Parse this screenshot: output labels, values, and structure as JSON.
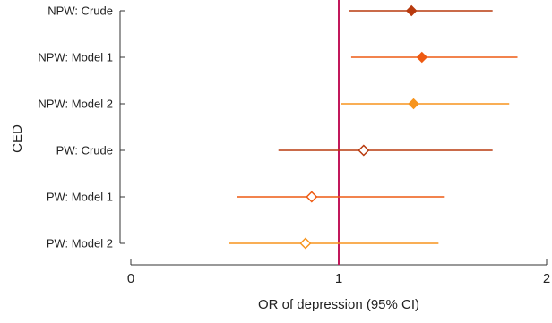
{
  "chart_data": {
    "type": "forest",
    "title": "",
    "xlabel": "OR of depression (95% CI)",
    "ylabel": "CED",
    "xlim": [
      0,
      2
    ],
    "x_ticks": [
      "0",
      "1",
      "2"
    ],
    "reference_line": {
      "x": 1,
      "color": "#c2185b"
    },
    "grid": false,
    "rows": [
      {
        "label": "NPW: Crude",
        "or": 1.35,
        "ci_low": 1.05,
        "ci_high": 1.74,
        "marker": "filled",
        "color": "#b83a0e"
      },
      {
        "label": "NPW: Model 1",
        "or": 1.4,
        "ci_low": 1.06,
        "ci_high": 1.86,
        "marker": "filled",
        "color": "#ee5a12"
      },
      {
        "label": "NPW: Model 2",
        "or": 1.36,
        "ci_low": 1.01,
        "ci_high": 1.82,
        "marker": "filled",
        "color": "#f7941d"
      },
      {
        "label": "PW: Crude",
        "or": 1.12,
        "ci_low": 0.71,
        "ci_high": 1.74,
        "marker": "open",
        "color": "#b83a0e"
      },
      {
        "label": "PW: Model 1",
        "or": 0.87,
        "ci_low": 0.51,
        "ci_high": 1.51,
        "marker": "open",
        "color": "#ee5a12"
      },
      {
        "label": "PW: Model 2",
        "or": 0.84,
        "ci_low": 0.47,
        "ci_high": 1.48,
        "marker": "open",
        "color": "#f7941d"
      }
    ]
  }
}
